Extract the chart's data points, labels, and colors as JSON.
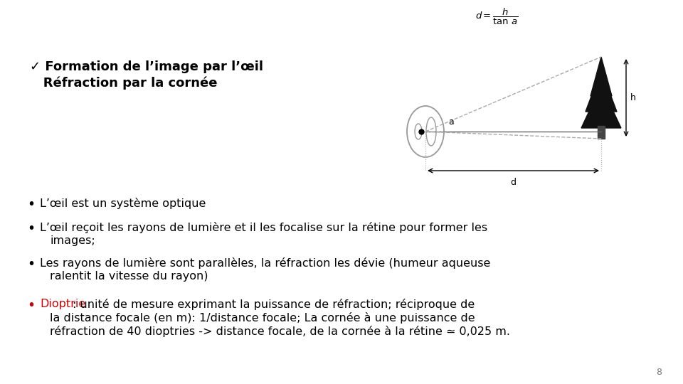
{
  "background_color": "#ffffff",
  "title_check": "✓ Formation de l’image par l’œil",
  "title_sub": "   Réfraction par la cornée",
  "bullet1": "L’œil est un système optique",
  "bullet2_line1": "L’œil reçoit les rayons de lumière et il les focalise sur la rétine pour former les",
  "bullet2_line2": "images;",
  "bullet3_line1": "Les rayons de lumière sont parallèles, la réfraction les dévie (humeur aqueuse",
  "bullet3_line2": "ralentit la vitesse du rayon)",
  "bullet4_word1": "Dioptrie",
  "bullet4_rest_line1": ": unité de mesure exprimant la puissance de réfraction; réciproque de",
  "bullet4_line2": "la distance focale (en m): 1/distance focale; La cornée à une puissance de",
  "bullet4_line3": "réfraction de 40 dioptries -> distance focale, de la cornée à la rétine ≃ 0,025 m.",
  "page_number": "8",
  "font_size_title": 13,
  "font_size_text": 11.5,
  "text_color": "#000000",
  "red_color": "#cc0000"
}
